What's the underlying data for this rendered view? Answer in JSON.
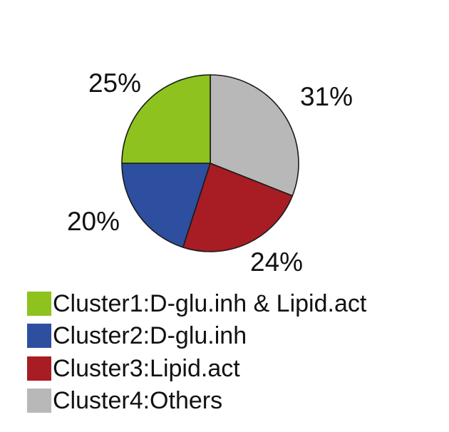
{
  "chart_data": {
    "type": "pie",
    "slices": [
      {
        "label": "Cluster4:Others",
        "value": 31,
        "value_label": "31%",
        "color": "#b8b8b8"
      },
      {
        "label": "Cluster3:Lipid.act",
        "value": 24,
        "value_label": "24%",
        "color": "#a81c24"
      },
      {
        "label": "Cluster2:D-glu.inh",
        "value": 20,
        "value_label": "20%",
        "color": "#2e4fa0"
      },
      {
        "label": "Cluster1:D-glu.inh & Lipid.act",
        "value": 25,
        "value_label": "25%",
        "color": "#8dc21f"
      }
    ],
    "start_angle": "12 o'clock",
    "direction": "clockwise",
    "legend_position": "bottom-left",
    "title": ""
  },
  "legend": [
    {
      "label": "Cluster1:D-glu.inh & Lipid.act",
      "color": "#8dc21f"
    },
    {
      "label": "Cluster2:D-glu.inh",
      "color": "#2e4fa0"
    },
    {
      "label": "Cluster3:Lipid.act",
      "color": "#a81c24"
    },
    {
      "label": "Cluster4:Others",
      "color": "#b8b8b8"
    }
  ]
}
